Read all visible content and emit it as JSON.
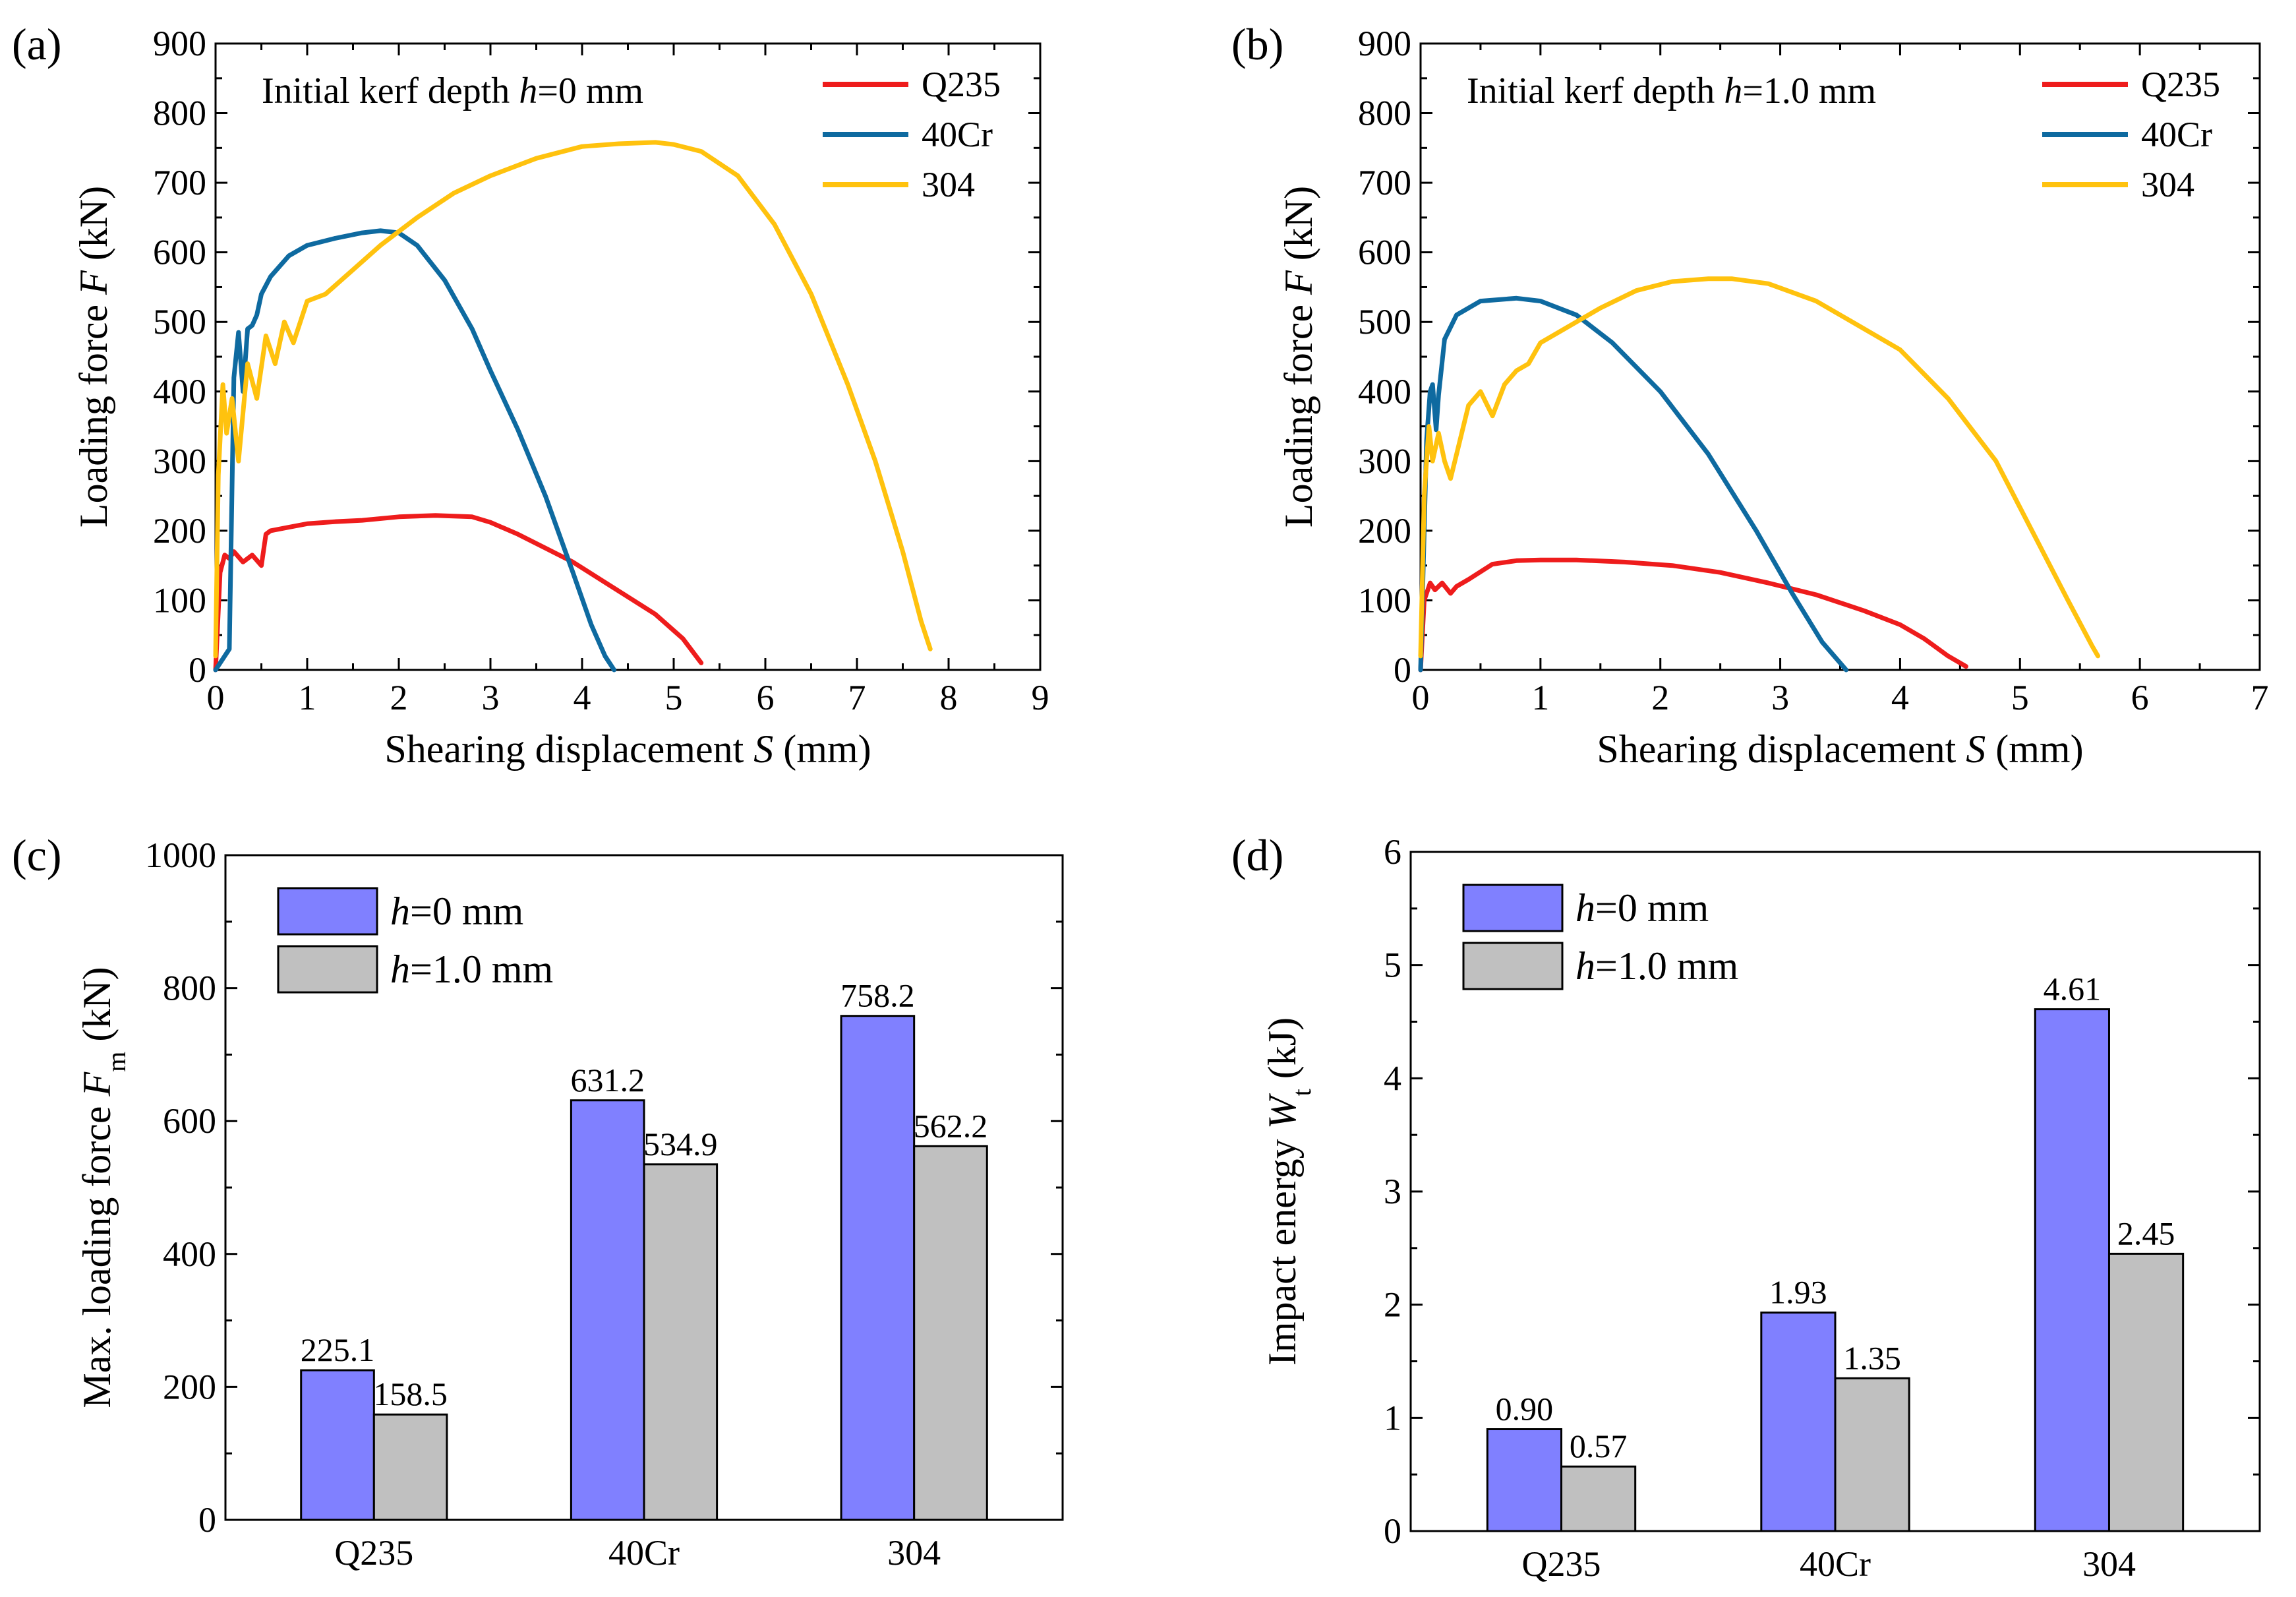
{
  "figure": {
    "panels": [
      "(a)",
      "(b)",
      "(c)",
      "(d)"
    ]
  },
  "colors": {
    "Q235": "#ee1c1c",
    "40Cr": "#0e6aa0",
    "304": "#ffc20e",
    "h0": "#8080ff",
    "h1": "#c0c0c0"
  },
  "chart_data": [
    {
      "id": "a",
      "type": "line",
      "panel_label": "(a)",
      "annotation": {
        "prefix": "Initial kerf depth ",
        "var": "h",
        "suffix": "=0 mm"
      },
      "xlabel": {
        "text": "Shearing displacement ",
        "var": "S",
        "unit": " (mm)"
      },
      "ylabel": {
        "text": "Loading force ",
        "var": "F",
        "unit": " (kN)"
      },
      "xlim": [
        0,
        9
      ],
      "ylim": [
        0,
        900
      ],
      "xticks": [
        "0",
        "1",
        "2",
        "3",
        "4",
        "5",
        "6",
        "7",
        "8",
        "9"
      ],
      "yticks": [
        "0",
        "100",
        "200",
        "300",
        "400",
        "500",
        "600",
        "700",
        "800",
        "900"
      ],
      "legend": {
        "position": "top-right",
        "entries": [
          "Q235",
          "40Cr",
          "304"
        ]
      },
      "series": [
        {
          "name": "Q235",
          "color": "#ee1c1c",
          "x": [
            0,
            0.05,
            0.1,
            0.15,
            0.2,
            0.3,
            0.4,
            0.5,
            0.55,
            0.6,
            0.8,
            1.0,
            1.3,
            1.6,
            2.0,
            2.4,
            2.8,
            3.0,
            3.3,
            3.6,
            3.9,
            4.2,
            4.5,
            4.8,
            5.1,
            5.3
          ],
          "y": [
            0,
            140,
            165,
            160,
            170,
            155,
            165,
            150,
            195,
            200,
            205,
            210,
            213,
            215,
            220,
            222,
            220,
            212,
            195,
            175,
            155,
            130,
            105,
            80,
            45,
            10
          ]
        },
        {
          "name": "40Cr",
          "color": "#0e6aa0",
          "x": [
            0,
            0.1,
            0.15,
            0.2,
            0.25,
            0.3,
            0.35,
            0.4,
            0.45,
            0.5,
            0.6,
            0.8,
            1.0,
            1.3,
            1.6,
            1.8,
            2.0,
            2.2,
            2.5,
            2.8,
            3.0,
            3.3,
            3.6,
            3.9,
            4.1,
            4.25,
            4.35
          ],
          "y": [
            0,
            20,
            30,
            420,
            485,
            400,
            490,
            495,
            510,
            540,
            565,
            595,
            610,
            620,
            628,
            631,
            628,
            610,
            560,
            490,
            430,
            345,
            250,
            140,
            65,
            20,
            0
          ]
        },
        {
          "name": "304",
          "color": "#ffc20e",
          "x": [
            0,
            0.03,
            0.08,
            0.12,
            0.18,
            0.25,
            0.35,
            0.45,
            0.55,
            0.65,
            0.75,
            0.85,
            1.0,
            1.2,
            1.5,
            1.8,
            2.2,
            2.6,
            3.0,
            3.5,
            4.0,
            4.4,
            4.8,
            5.0,
            5.3,
            5.7,
            6.1,
            6.5,
            6.9,
            7.2,
            7.5,
            7.7,
            7.8
          ],
          "y": [
            20,
            280,
            410,
            340,
            390,
            300,
            440,
            390,
            480,
            440,
            500,
            470,
            530,
            540,
            575,
            610,
            650,
            685,
            710,
            735,
            752,
            756,
            758,
            755,
            745,
            710,
            640,
            540,
            410,
            300,
            170,
            70,
            30
          ]
        }
      ]
    },
    {
      "id": "b",
      "type": "line",
      "panel_label": "(b)",
      "annotation": {
        "prefix": "Initial kerf depth ",
        "var": "h",
        "suffix": "=1.0 mm"
      },
      "xlabel": {
        "text": "Shearing displacement ",
        "var": "S",
        "unit": " (mm)"
      },
      "ylabel": {
        "text": "Loading force ",
        "var": "F",
        "unit": " (kN)"
      },
      "xlim": [
        0,
        7
      ],
      "ylim": [
        0,
        900
      ],
      "xticks": [
        "0",
        "1",
        "2",
        "3",
        "4",
        "5",
        "6",
        "7"
      ],
      "yticks": [
        "0",
        "100",
        "200",
        "300",
        "400",
        "500",
        "600",
        "700",
        "800",
        "900"
      ],
      "legend": {
        "position": "top-right",
        "entries": [
          "Q235",
          "40Cr",
          "304"
        ]
      },
      "series": [
        {
          "name": "Q235",
          "color": "#ee1c1c",
          "x": [
            0,
            0.03,
            0.08,
            0.12,
            0.18,
            0.25,
            0.3,
            0.4,
            0.6,
            0.8,
            1.0,
            1.3,
            1.7,
            2.1,
            2.5,
            2.9,
            3.3,
            3.7,
            4.0,
            4.2,
            4.4,
            4.55
          ],
          "y": [
            0,
            100,
            125,
            115,
            125,
            110,
            120,
            130,
            152,
            157,
            158,
            158,
            155,
            150,
            140,
            125,
            108,
            85,
            65,
            45,
            20,
            5
          ]
        },
        {
          "name": "40Cr",
          "color": "#0e6aa0",
          "x": [
            0,
            0.05,
            0.08,
            0.1,
            0.13,
            0.15,
            0.2,
            0.3,
            0.5,
            0.8,
            1.0,
            1.3,
            1.6,
            2.0,
            2.4,
            2.8,
            3.1,
            3.35,
            3.5,
            3.55
          ],
          "y": [
            0,
            330,
            400,
            410,
            345,
            395,
            475,
            510,
            530,
            534,
            530,
            510,
            470,
            400,
            310,
            200,
            110,
            40,
            10,
            0
          ]
        },
        {
          "name": "304",
          "color": "#ffc20e",
          "x": [
            0,
            0.03,
            0.07,
            0.1,
            0.15,
            0.2,
            0.25,
            0.3,
            0.4,
            0.5,
            0.6,
            0.7,
            0.8,
            0.9,
            1.0,
            1.2,
            1.5,
            1.8,
            2.1,
            2.4,
            2.6,
            2.9,
            3.3,
            3.6,
            4.0,
            4.4,
            4.8,
            5.1,
            5.4,
            5.6,
            5.65
          ],
          "y": [
            20,
            250,
            350,
            300,
            340,
            300,
            275,
            310,
            380,
            400,
            365,
            410,
            430,
            440,
            470,
            490,
            520,
            545,
            558,
            562,
            562,
            555,
            530,
            500,
            460,
            390,
            300,
            200,
            100,
            35,
            20
          ]
        }
      ]
    },
    {
      "id": "c",
      "type": "bar",
      "panel_label": "(c)",
      "categories": [
        "Q235",
        "40Cr",
        "304"
      ],
      "ylabel": {
        "text": "Max. loading force ",
        "var": "F",
        "sub": "m",
        "unit": " (kN)"
      },
      "xlabel": "",
      "ylim": [
        0,
        1000
      ],
      "yticks": [
        "0",
        "200",
        "400",
        "600",
        "800",
        "1000"
      ],
      "legend": {
        "position": "top-left"
      },
      "series": [
        {
          "name": "h=0 mm",
          "var": "h",
          "label_rest": "=0 mm",
          "color": "#8080ff",
          "values": [
            225.1,
            631.2,
            758.2
          ],
          "labels": [
            "225.1",
            "631.2",
            "758.2"
          ]
        },
        {
          "name": "h=1.0 mm",
          "var": "h",
          "label_rest": "=1.0 mm",
          "color": "#c0c0c0",
          "values": [
            158.5,
            534.9,
            562.2
          ],
          "labels": [
            "158.5",
            "534.9",
            "562.2"
          ]
        }
      ]
    },
    {
      "id": "d",
      "type": "bar",
      "panel_label": "(d)",
      "categories": [
        "Q235",
        "40Cr",
        "304"
      ],
      "ylabel": {
        "text": "Impact energy ",
        "var": "W",
        "sub": "t",
        "unit": " (kJ)"
      },
      "xlabel": "",
      "ylim": [
        0,
        6
      ],
      "yticks": [
        "0",
        "1",
        "2",
        "3",
        "4",
        "5",
        "6"
      ],
      "legend": {
        "position": "top-left"
      },
      "series": [
        {
          "name": "h=0 mm",
          "var": "h",
          "label_rest": "=0 mm",
          "color": "#8080ff",
          "values": [
            0.9,
            1.93,
            4.61
          ],
          "labels": [
            "0.90",
            "1.93",
            "4.61"
          ]
        },
        {
          "name": "h=1.0 mm",
          "var": "h",
          "label_rest": "=1.0 mm",
          "color": "#c0c0c0",
          "values": [
            0.57,
            1.35,
            2.45
          ],
          "labels": [
            "0.57",
            "1.35",
            "2.45"
          ]
        }
      ]
    }
  ]
}
